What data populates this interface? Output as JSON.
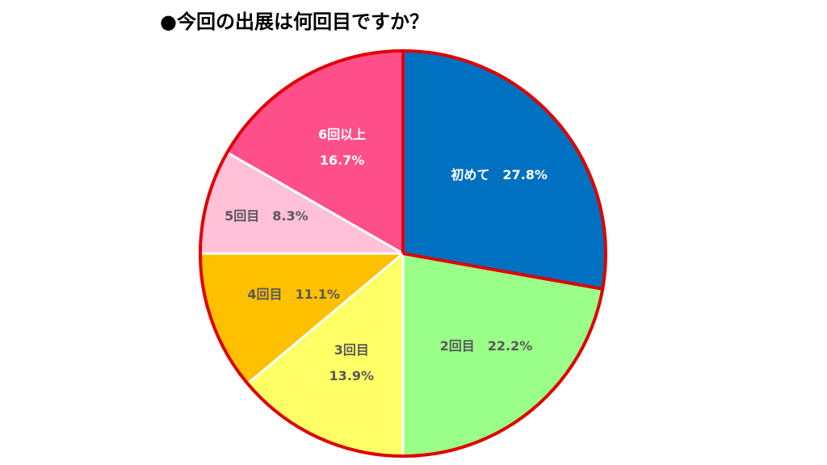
{
  "chart_data": {
    "type": "pie",
    "title": "●今回の出展は何回目ですか？",
    "categories": [
      "初めて",
      "2回目",
      "3回目",
      "4回目",
      "5回目",
      "6回以上"
    ],
    "values": [
      27.8,
      22.2,
      13.9,
      11.1,
      8.3,
      16.7
    ],
    "value_labels": [
      "27.8%",
      "22.2%",
      "13.9%",
      "11.1%",
      "8.3%",
      "16.7%"
    ],
    "colors": [
      "#0070c0",
      "#99ff88",
      "#ffff66",
      "#ffc000",
      "#ffc0d8",
      "#ff4f8b"
    ]
  }
}
